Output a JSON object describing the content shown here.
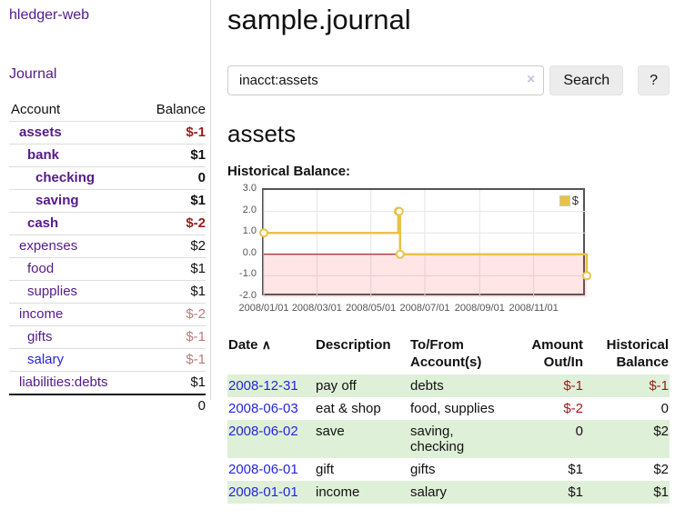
{
  "app": {
    "title": "hledger-web",
    "journal_nav": "Journal"
  },
  "sidebar": {
    "accounts": {
      "headers": [
        "Account",
        "Balance"
      ],
      "rows": [
        {
          "account": "assets",
          "balance": "$-1",
          "indent": 1,
          "bold": true,
          "link_class": "lnk-purple",
          "balance_class": "amt-darkred"
        },
        {
          "account": "bank",
          "balance": "$1",
          "indent": 2,
          "bold": true,
          "link_class": "lnk-purple",
          "balance_class": "amt-black"
        },
        {
          "account": "checking",
          "balance": "0",
          "indent": 3,
          "bold": true,
          "link_class": "lnk-purple",
          "balance_class": "amt-black"
        },
        {
          "account": "saving",
          "balance": "$1",
          "indent": 3,
          "bold": true,
          "link_class": "lnk-purple",
          "balance_class": "amt-black"
        },
        {
          "account": "cash",
          "balance": "$-2",
          "indent": 2,
          "bold": true,
          "link_class": "lnk-purple",
          "balance_class": "amt-darkred"
        },
        {
          "account": "expenses",
          "balance": "$2",
          "indent": 1,
          "bold": false,
          "link_class": "lnk-purple",
          "balance_class": "amt-black"
        },
        {
          "account": "food",
          "balance": "$1",
          "indent": 2,
          "bold": false,
          "link_class": "lnk-purple",
          "balance_class": "amt-black"
        },
        {
          "account": "supplies",
          "balance": "$1",
          "indent": 2,
          "bold": false,
          "link_class": "lnk-purple",
          "balance_class": "amt-black"
        },
        {
          "account": "income",
          "balance": "$-2",
          "indent": 1,
          "bold": false,
          "link_class": "lnk-purple",
          "balance_class": "amt-rose"
        },
        {
          "account": "gifts",
          "balance": "$-1",
          "indent": 2,
          "bold": false,
          "link_class": "lnk-purple",
          "balance_class": "amt-rose"
        },
        {
          "account": "salary",
          "balance": "$-1",
          "indent": 2,
          "bold": false,
          "link_class": "lnk-blue",
          "balance_class": "amt-rose"
        },
        {
          "account": "liabilities:debts",
          "balance": "$1",
          "indent": 1,
          "bold": false,
          "link_class": "lnk-purple",
          "balance_class": "amt-black"
        }
      ],
      "total": "0"
    }
  },
  "main": {
    "title": "sample.journal",
    "search": {
      "value": "inacct:assets",
      "clear_icon": "×",
      "search_button": "Search",
      "help_button": "?"
    },
    "account_heading": "assets",
    "chart_heading": "Historical Balance:"
  },
  "chart_data": {
    "type": "line",
    "step": true,
    "title": "Historical Balance:",
    "legend": {
      "label": "$",
      "position": "top-right"
    },
    "series": [
      {
        "name": "$",
        "color": "#e8c24a",
        "points": [
          [
            "2008-01-01",
            1
          ],
          [
            "2008-06-01",
            2
          ],
          [
            "2008-06-02",
            2
          ],
          [
            "2008-06-03",
            0
          ],
          [
            "2008-12-31",
            -1
          ]
        ]
      }
    ],
    "x_start": "2008-01-01",
    "x_end": "2008-12-31",
    "x_tick_labels": [
      "2008/01/01",
      "2008/03/01",
      "2008/05/01",
      "2008/07/01",
      "2008/09/01",
      "2008/11/01"
    ],
    "x_tick_dates": [
      "2008-01-01",
      "2008-03-01",
      "2008-05-01",
      "2008-07-01",
      "2008-09-01",
      "2008-11-01"
    ],
    "y_ticks": [
      "3.0",
      "2.0",
      "1.0",
      "0.0",
      "-1.0",
      "-2.0"
    ],
    "ylim": [
      -2,
      3
    ],
    "grid": true,
    "gridline_color": "#e5e5e5",
    "zero_line_color": "#8b0000",
    "negative_region_fill": "rgba(255,70,70,0.14)",
    "marker": {
      "shape": "open-circle",
      "fill": "#ffffff",
      "stroke": "#e8c24a"
    }
  },
  "register": {
    "headers": {
      "date": "Date",
      "description": "Description",
      "accounts": "To/From Account(s)",
      "amount": "Amount Out/In",
      "balance": "Historical Balance"
    },
    "sort_indicator": "∧",
    "rows": [
      {
        "date": "2008-12-31",
        "description": "pay off",
        "accounts": "debts",
        "amount": "$-1",
        "amount_class": "amt-darkred",
        "balance": "$-1",
        "balance_class": "amt-darkred"
      },
      {
        "date": "2008-06-03",
        "description": "eat & shop",
        "accounts": "food, supplies",
        "amount": "$-2",
        "amount_class": "amt-darkred",
        "balance": "0",
        "balance_class": "amt-black"
      },
      {
        "date": "2008-06-02",
        "description": "save",
        "accounts": "saving, checking",
        "amount": "0",
        "amount_class": "amt-black",
        "balance": "$2",
        "balance_class": "amt-black"
      },
      {
        "date": "2008-06-01",
        "description": "gift",
        "accounts": "gifts",
        "amount": "$1",
        "amount_class": "amt-black",
        "balance": "$2",
        "balance_class": "amt-black"
      },
      {
        "date": "2008-01-01",
        "description": "income",
        "accounts": "salary",
        "amount": "$1",
        "amount_class": "amt-black",
        "balance": "$1",
        "balance_class": "amt-black"
      }
    ]
  }
}
